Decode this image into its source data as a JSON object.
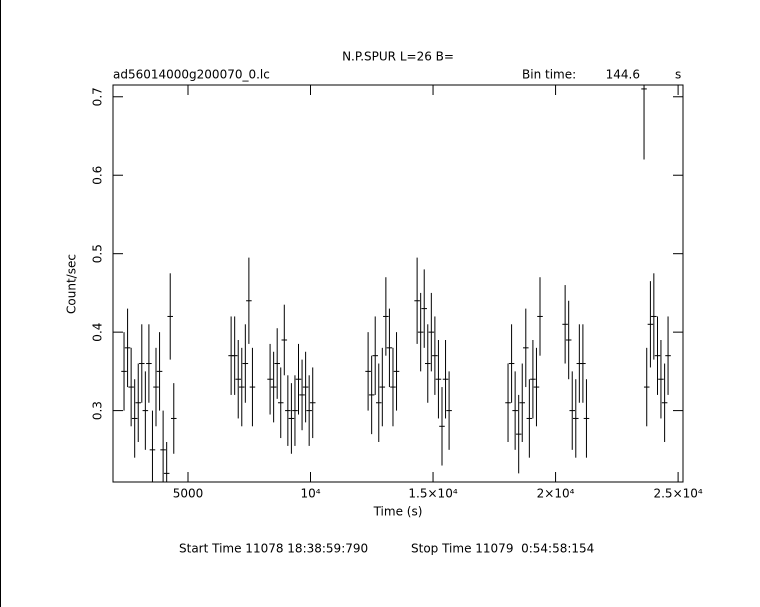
{
  "chart_data": {
    "type": "errorbar",
    "title": "N.P.SPUR L=26 B=",
    "file_name": "ad56014000g200070_0.lc",
    "bin_time_label": "Bin time:",
    "bin_time": 144.6,
    "bin_time_unit": "s",
    "x_label": "Time (s)",
    "y_label": "Count/sec",
    "start_time": "Start Time 11078 18:38:59:790",
    "stop_time": "Stop Time 11079  0:54:58:154",
    "color": "#000000",
    "xlim": [
      1940,
      25200
    ],
    "ylim": [
      0.209,
      0.715
    ],
    "xticks": [
      5000,
      {
        "value": 10000,
        "label": "10⁴"
      },
      {
        "value": 15000,
        "label": "1.5×10⁴"
      },
      {
        "value": 20000,
        "label": "2×10⁴"
      },
      {
        "value": 25000,
        "label": "2.5×10⁴"
      }
    ],
    "yticks": [
      0.3,
      0.4,
      0.5,
      0.6,
      0.7
    ],
    "x": [
      2390,
      2535,
      2680,
      2825,
      2970,
      3115,
      3260,
      3405,
      3550,
      3695,
      3840,
      3985,
      4130,
      4275,
      4420,
      6760,
      6905,
      7050,
      7195,
      7340,
      7485,
      7630,
      8350,
      8495,
      8640,
      8785,
      8930,
      9075,
      9220,
      9365,
      9510,
      9655,
      9800,
      9945,
      10090,
      12350,
      12495,
      12640,
      12785,
      12930,
      13075,
      13220,
      13365,
      13510,
      14350,
      14495,
      14640,
      14785,
      14930,
      15075,
      15220,
      15365,
      15510,
      15655,
      18060,
      18205,
      18350,
      18495,
      18640,
      18785,
      18930,
      19075,
      19220,
      19365,
      20390,
      20535,
      20680,
      20825,
      20970,
      21115,
      21260,
      23610,
      23720,
      23870,
      24010,
      24160,
      24300,
      24450,
      24590
    ],
    "values": [
      0.35,
      0.38,
      0.33,
      0.29,
      0.31,
      0.36,
      0.3,
      0.36,
      0.25,
      0.33,
      0.35,
      0.25,
      0.22,
      0.42,
      0.29,
      0.37,
      0.37,
      0.34,
      0.33,
      0.36,
      0.44,
      0.33,
      0.34,
      0.33,
      0.36,
      0.31,
      0.39,
      0.3,
      0.29,
      0.3,
      0.34,
      0.32,
      0.33,
      0.3,
      0.31,
      0.35,
      0.32,
      0.37,
      0.31,
      0.33,
      0.42,
      0.38,
      0.33,
      0.35,
      0.44,
      0.4,
      0.43,
      0.36,
      0.4,
      0.37,
      0.34,
      0.28,
      0.34,
      0.3,
      0.31,
      0.36,
      0.3,
      0.27,
      0.31,
      0.38,
      0.29,
      0.34,
      0.33,
      0.42,
      0.41,
      0.39,
      0.3,
      0.29,
      0.36,
      0.36,
      0.29,
      0.71,
      0.33,
      0.41,
      0.42,
      0.37,
      0.34,
      0.31,
      0.37
    ],
    "yerr": [
      0.05,
      0.05,
      0.05,
      0.05,
      0.05,
      0.05,
      0.05,
      0.05,
      0.05,
      0.05,
      0.05,
      0.05,
      0.04,
      0.055,
      0.045,
      0.05,
      0.05,
      0.05,
      0.05,
      0.05,
      0.055,
      0.05,
      0.045,
      0.045,
      0.045,
      0.045,
      0.045,
      0.045,
      0.045,
      0.045,
      0.045,
      0.045,
      0.045,
      0.045,
      0.045,
      0.05,
      0.05,
      0.05,
      0.05,
      0.05,
      0.05,
      0.05,
      0.05,
      0.05,
      0.055,
      0.05,
      0.05,
      0.05,
      0.05,
      0.05,
      0.05,
      0.05,
      0.05,
      0.05,
      0.05,
      0.05,
      0.05,
      0.05,
      0.05,
      0.05,
      0.05,
      0.05,
      0.05,
      0.05,
      0.05,
      0.05,
      0.05,
      0.05,
      0.05,
      0.05,
      0.05,
      0.09,
      0.05,
      0.055,
      0.055,
      0.05,
      0.05,
      0.05,
      0.05
    ]
  }
}
